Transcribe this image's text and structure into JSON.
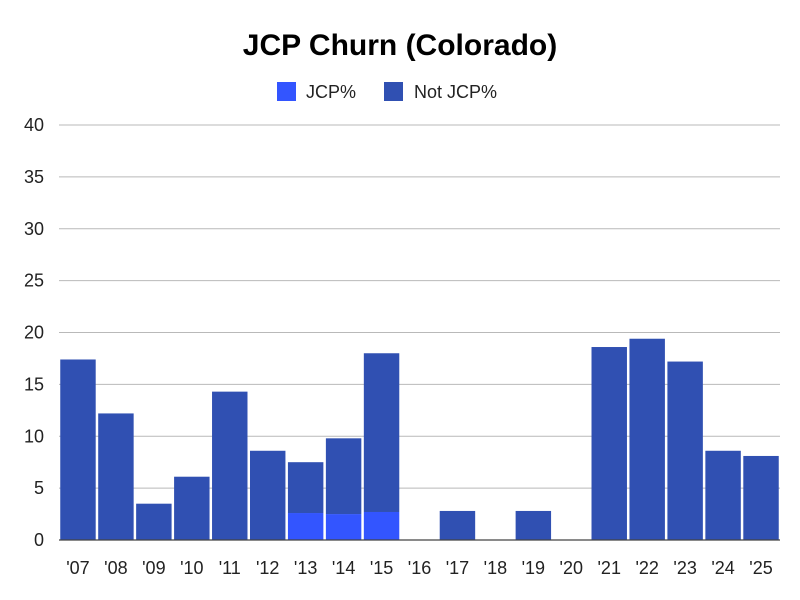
{
  "chart_data": {
    "type": "bar",
    "stacked": true,
    "title": "JCP Churn (Colorado)",
    "xlabel": "",
    "ylabel": "",
    "ylim": [
      0,
      40
    ],
    "yticks": [
      0,
      5,
      10,
      15,
      20,
      25,
      30,
      35,
      40
    ],
    "grid": true,
    "legend_position": "top",
    "categories": [
      "'07",
      "'08",
      "'09",
      "'10",
      "'11",
      "'12",
      "'13",
      "'14",
      "'15",
      "'16",
      "'17",
      "'18",
      "'19",
      "'20",
      "'21",
      "'22",
      "'23",
      "'24",
      "'25"
    ],
    "series": [
      {
        "name": "JCP%",
        "color": "#3355ff",
        "values": [
          0,
          0,
          0,
          0,
          0,
          0,
          2.6,
          2.5,
          2.7,
          0,
          0,
          0,
          0,
          0,
          0,
          0,
          0,
          0,
          0
        ]
      },
      {
        "name": "Not JCP%",
        "color": "#3050b2",
        "values": [
          17.4,
          12.2,
          3.5,
          6.1,
          14.3,
          8.6,
          4.9,
          7.3,
          15.3,
          0,
          2.8,
          0,
          2.8,
          0,
          18.6,
          19.4,
          17.2,
          8.6,
          8.1
        ]
      }
    ]
  }
}
